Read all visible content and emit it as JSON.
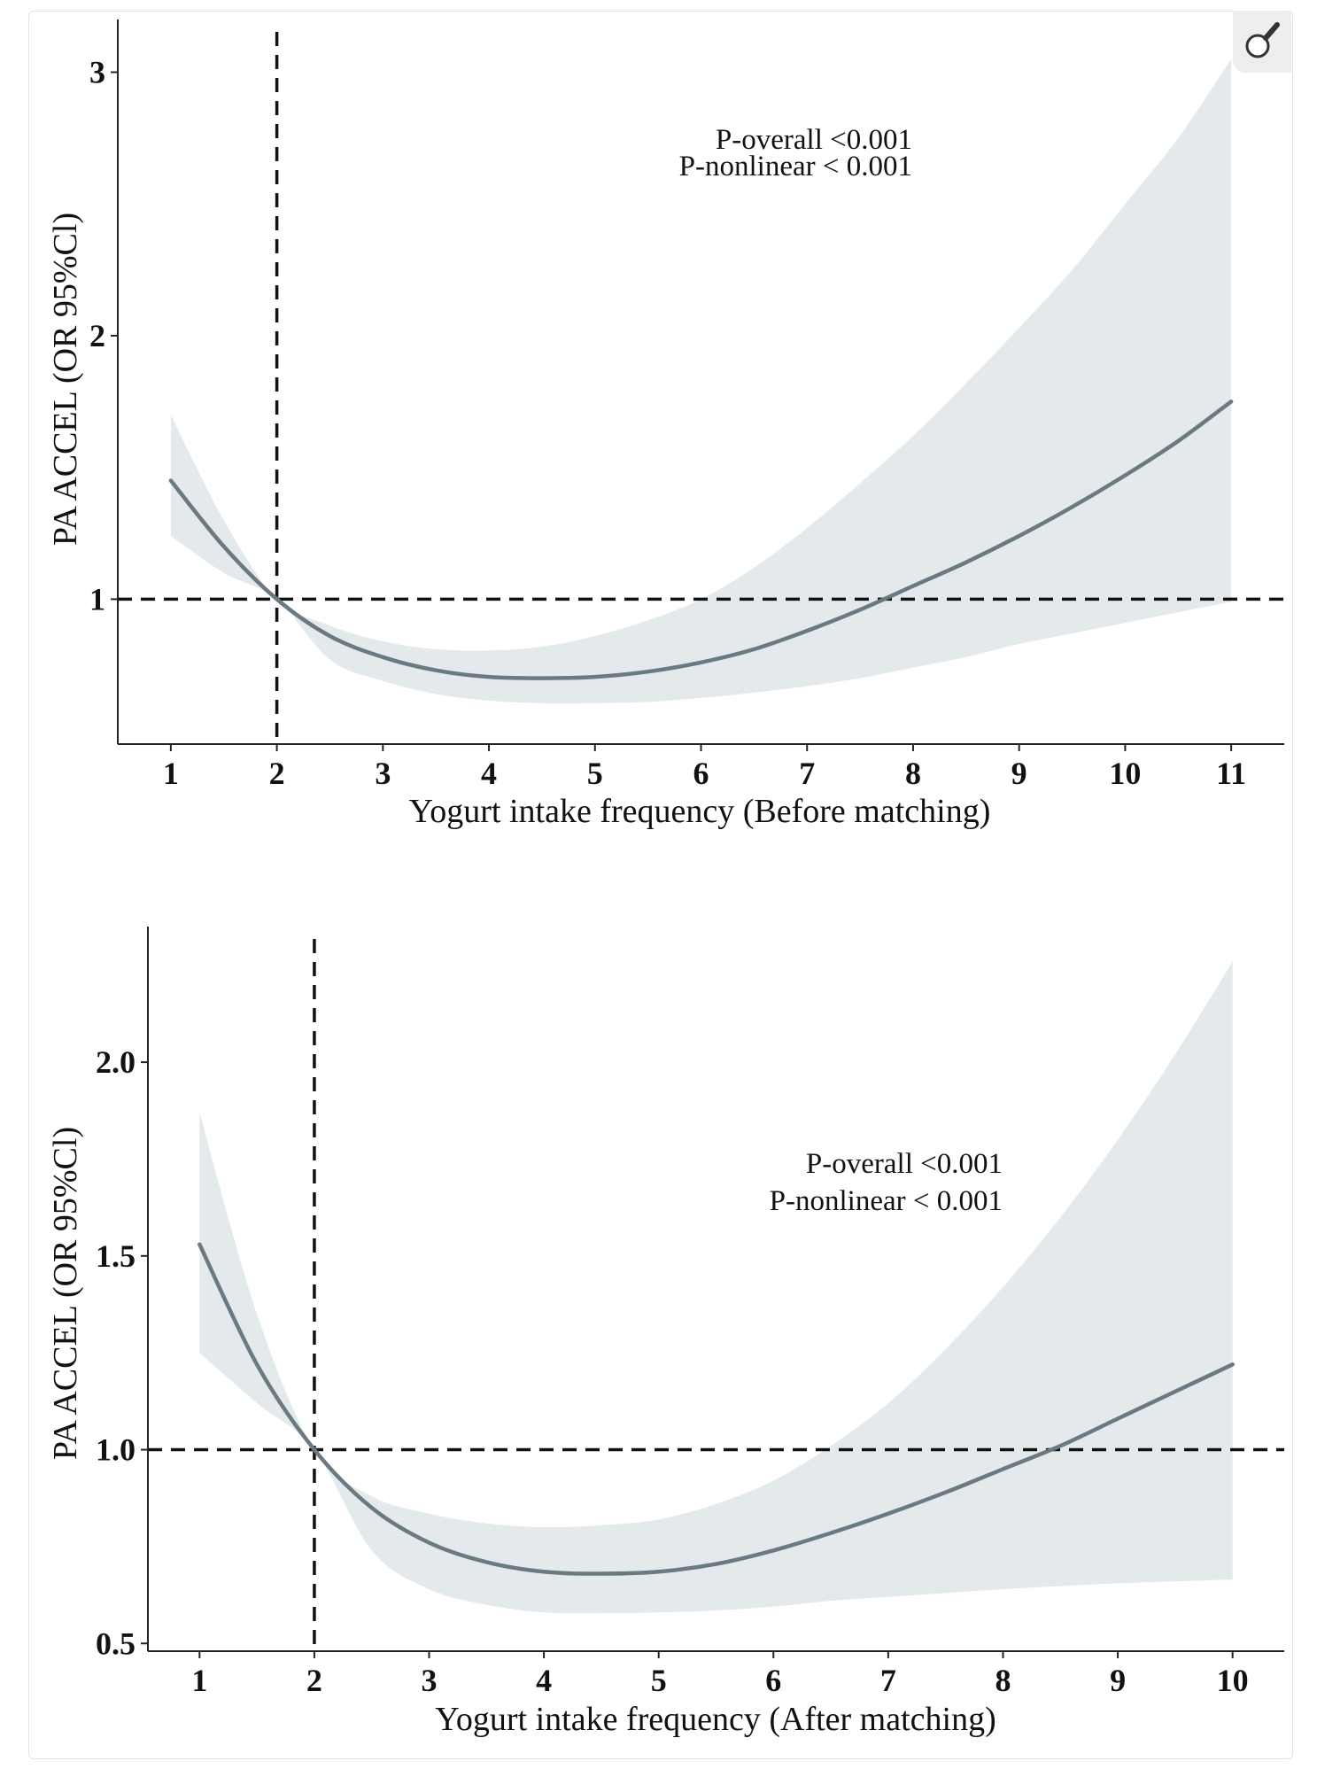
{
  "colors": {
    "band": "#e4eaeb",
    "curve": "#6a7a83",
    "axis": "#222222",
    "ref": "#111111",
    "frame": "#e3e3e3"
  },
  "toolbar": {
    "zoom_icon": "magnifier-icon"
  },
  "chart_data": [
    {
      "type": "line",
      "xlabel": "Yogurt intake frequency (Before matching)",
      "ylabel": "PA ACCEL (OR 95%Cl)",
      "xlim": [
        0.5,
        11.5
      ],
      "ylim": [
        0.45,
        3.2
      ],
      "y_scale": "linear",
      "xticks": [
        1,
        2,
        3,
        4,
        5,
        6,
        7,
        8,
        9,
        10,
        11
      ],
      "xtick_labels": [
        "1",
        "2",
        "3",
        "4",
        "5",
        "6",
        "7",
        "8",
        "9",
        "10",
        "11"
      ],
      "yticks": [
        1,
        2,
        3
      ],
      "ytick_labels": [
        "1",
        "2",
        "3"
      ],
      "reference_lines": {
        "x": 2,
        "y": 1,
        "style": "dashed"
      },
      "annotations": {
        "line1": "P-overall <0.001",
        "line2": "P-nonlinear < 0.001"
      },
      "series": [
        {
          "x": [
            1,
            1.5,
            2,
            2.5,
            3,
            3.5,
            4,
            4.5,
            5,
            5.5,
            6,
            6.5,
            7,
            7.5,
            8,
            8.5,
            9,
            9.5,
            10,
            10.5,
            11
          ],
          "y": [
            1.45,
            1.2,
            1.0,
            0.86,
            0.78,
            0.73,
            0.705,
            0.7,
            0.705,
            0.725,
            0.76,
            0.81,
            0.88,
            0.96,
            1.05,
            1.14,
            1.24,
            1.35,
            1.47,
            1.6,
            1.75
          ]
        }
      ],
      "band_lower": [
        1.24,
        1.1,
        1.0,
        0.77,
        0.69,
        0.64,
        0.615,
        0.605,
        0.605,
        0.61,
        0.625,
        0.645,
        0.67,
        0.7,
        0.74,
        0.78,
        0.83,
        0.87,
        0.91,
        0.95,
        0.99
      ],
      "band_upper": [
        1.7,
        1.3,
        1.0,
        0.9,
        0.84,
        0.81,
        0.805,
        0.82,
        0.86,
        0.92,
        1.0,
        1.12,
        1.27,
        1.44,
        1.62,
        1.82,
        2.03,
        2.25,
        2.5,
        2.75,
        3.05
      ]
    },
    {
      "type": "line",
      "xlabel": "Yogurt intake frequency (After matching)",
      "ylabel": "PA ACCEL (OR 95%Cl)",
      "xlim": [
        0.55,
        10.45
      ],
      "ylim": [
        0.48,
        2.35
      ],
      "y_scale": "linear",
      "xticks": [
        1,
        2,
        3,
        4,
        5,
        6,
        7,
        8,
        9,
        10
      ],
      "xtick_labels": [
        "1",
        "2",
        "3",
        "4",
        "5",
        "6",
        "7",
        "8",
        "9",
        "10"
      ],
      "yticks": [
        0.5,
        1.0,
        1.5,
        2.0
      ],
      "ytick_labels": [
        "0.5",
        "1.0",
        "1.5",
        "2.0"
      ],
      "reference_lines": {
        "x": 2,
        "y": 1.0,
        "style": "dashed"
      },
      "annotations": {
        "line1": "P-overall <0.001",
        "line2": "P-nonlinear < 0.001"
      },
      "series": [
        {
          "x": [
            1,
            1.5,
            2,
            2.5,
            3,
            3.5,
            4,
            4.5,
            5,
            5.5,
            6,
            6.5,
            7,
            7.5,
            8,
            8.5,
            9,
            9.5,
            10
          ],
          "y": [
            1.53,
            1.22,
            1.0,
            0.85,
            0.76,
            0.71,
            0.685,
            0.68,
            0.685,
            0.705,
            0.74,
            0.785,
            0.835,
            0.89,
            0.95,
            1.01,
            1.08,
            1.15,
            1.22
          ]
        }
      ],
      "band_lower": [
        1.25,
        1.12,
        1.0,
        0.74,
        0.64,
        0.6,
        0.58,
        0.578,
        0.58,
        0.585,
        0.595,
        0.61,
        0.62,
        0.63,
        0.64,
        0.648,
        0.655,
        0.66,
        0.665
      ],
      "band_upper": [
        1.87,
        1.35,
        1.0,
        0.88,
        0.835,
        0.81,
        0.8,
        0.805,
        0.82,
        0.86,
        0.92,
        1.01,
        1.12,
        1.26,
        1.42,
        1.6,
        1.8,
        2.02,
        2.26
      ]
    }
  ]
}
